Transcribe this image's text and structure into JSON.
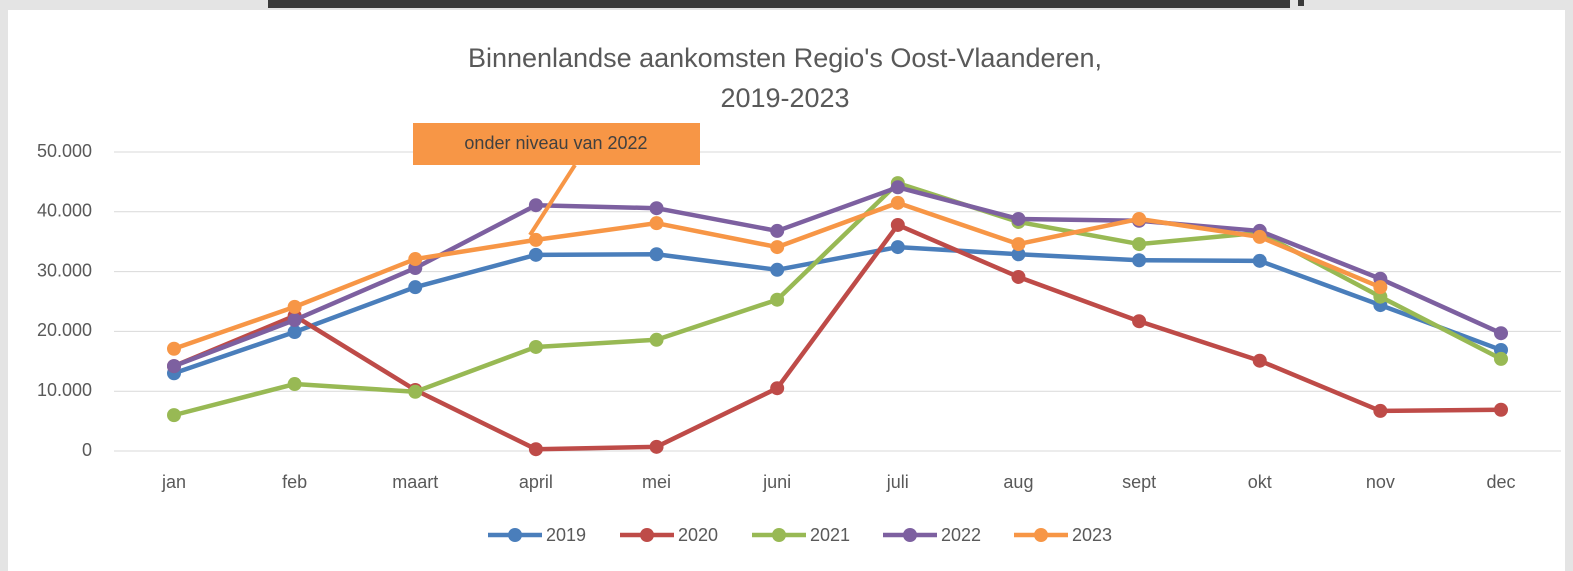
{
  "chart_data": {
    "type": "line",
    "title": [
      "Binnenlandse aankomsten Regio's Oost-Vlaanderen,",
      "2019-2023"
    ],
    "annotation": "onder niveau van 2022",
    "categories": [
      "jan",
      "feb",
      "maart",
      "april",
      "mei",
      "juni",
      "juli",
      "aug",
      "sept",
      "okt",
      "nov",
      "dec"
    ],
    "series": [
      {
        "name": "2019",
        "color": "#4a7ebb",
        "values": [
          13000,
          19900,
          27400,
          32800,
          32900,
          30300,
          34100,
          32900,
          31900,
          31800,
          24400,
          16900
        ]
      },
      {
        "name": "2020",
        "color": "#be4b48",
        "values": [
          14200,
          22600,
          10200,
          300,
          700,
          10500,
          37800,
          29100,
          21700,
          15100,
          6700,
          6900
        ]
      },
      {
        "name": "2021",
        "color": "#98b954",
        "values": [
          6000,
          11200,
          9900,
          17400,
          18600,
          25300,
          44800,
          38300,
          34600,
          36500,
          25800,
          15400
        ]
      },
      {
        "name": "2022",
        "color": "#7d60a0",
        "values": [
          14200,
          21900,
          30600,
          41100,
          40600,
          36800,
          44100,
          38800,
          38500,
          36800,
          28800,
          19700
        ]
      },
      {
        "name": "2023",
        "color": "#f79646",
        "values": [
          17100,
          24100,
          32100,
          35300,
          38100,
          34100,
          41500,
          34600,
          38800,
          35800,
          27400,
          null
        ]
      }
    ],
    "ylim": [
      0,
      50000
    ],
    "yticks": [
      0,
      {
        "value": 10000,
        "label": "10.000"
      },
      {
        "value": 20000,
        "label": "20.000"
      },
      {
        "value": 30000,
        "label": "30.000"
      },
      {
        "value": 40000,
        "label": "40.000"
      },
      {
        "value": 50000,
        "label": "50.000"
      }
    ],
    "grid": true,
    "legend": "bottom"
  }
}
